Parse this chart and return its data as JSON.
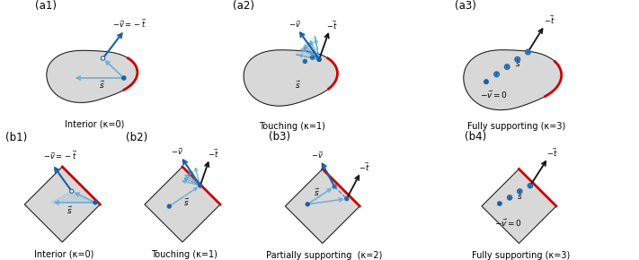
{
  "bg_color": "#ffffff",
  "blob_color": "#d8d8d8",
  "blob_edge_color": "#111111",
  "red_arc_color": "#cc0000",
  "blue_arrow_color": "#1a5fa8",
  "dark_arrow_color": "#111111",
  "dot_fill_color": "#1a5fa8",
  "dot_edge_color": "#1a5fa8",
  "light_blue_color": "#6aaed6",
  "dashed_color": "#4488bb",
  "panel_labels": [
    "(a1)",
    "(a2)",
    "(a3)",
    "(b1)",
    "(b2)",
    "(b3)",
    "(b4)"
  ],
  "captions_top": [
    "Interior (κ=0)",
    "Touching (κ=1)",
    "Fully supporting (κ=3)"
  ],
  "captions_bot": [
    "Interior (κ=0)",
    "Touching (κ=1)",
    "Partially supporting  (κ=2)",
    "Fully supporting (κ=3)"
  ],
  "font_size_caption": 7,
  "font_size_panel": 8.5,
  "font_size_annot": 6.5
}
